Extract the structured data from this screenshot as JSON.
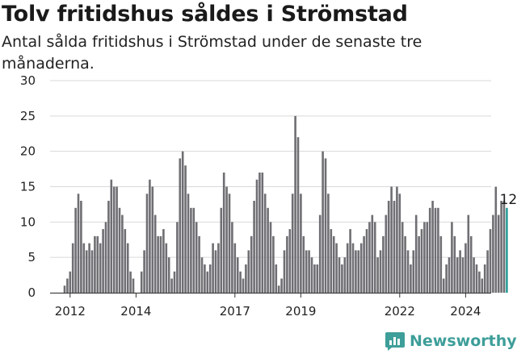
{
  "header": {
    "title": "Tolv fritidshus såldes i Strömstad",
    "subtitle": "Antal sålda fritidshus i Strömstad under de senaste tre månaderna."
  },
  "brand": {
    "name": "Newsworthy",
    "color": "#3e9e99"
  },
  "colors": {
    "bar": "#6f6e73",
    "highlight": "#2a9d98",
    "grid": "#d9d9d9"
  },
  "chart_data": {
    "type": "bar",
    "title": "Tolv fritidshus såldes i Strömstad",
    "subtitle": "Antal sålda fritidshus i Strömstad under de senaste tre månaderna.",
    "x_unit": "months",
    "x_start": "2011-11",
    "ylim": [
      0,
      30
    ],
    "yticks": [
      0,
      5,
      10,
      15,
      20,
      25,
      30
    ],
    "xticks": [
      {
        "label": "2012",
        "index": 2
      },
      {
        "label": "2014",
        "index": 26
      },
      {
        "label": "2017",
        "index": 62
      },
      {
        "label": "2019",
        "index": 86
      },
      {
        "label": "2022",
        "index": 122
      },
      {
        "label": "2024",
        "index": 146
      }
    ],
    "grid": true,
    "values": [
      1,
      2,
      3,
      7,
      12,
      14,
      13,
      7,
      6,
      7,
      6,
      8,
      8,
      7,
      9,
      10,
      13,
      16,
      15,
      15,
      12,
      11,
      9,
      7,
      3,
      2,
      0,
      0,
      3,
      6,
      14,
      16,
      15,
      11,
      8,
      8,
      9,
      7,
      5,
      2,
      3,
      10,
      19,
      20,
      18,
      14,
      12,
      12,
      10,
      8,
      5,
      4,
      3,
      4,
      7,
      6,
      7,
      12,
      17,
      15,
      14,
      10,
      7,
      5,
      3,
      2,
      4,
      6,
      8,
      13,
      16,
      17,
      17,
      14,
      12,
      10,
      8,
      4,
      1,
      2,
      6,
      8,
      9,
      14,
      25,
      22,
      14,
      8,
      6,
      6,
      5,
      4,
      4,
      11,
      20,
      19,
      14,
      9,
      8,
      7,
      5,
      4,
      5,
      7,
      9,
      7,
      6,
      6,
      7,
      8,
      9,
      10,
      11,
      10,
      5,
      6,
      8,
      11,
      13,
      15,
      13,
      15,
      14,
      10,
      8,
      6,
      4,
      6,
      11,
      8,
      9,
      10,
      10,
      12,
      13,
      12,
      12,
      8,
      2,
      4,
      5,
      10,
      8,
      5,
      6,
      5,
      7,
      11,
      8,
      5,
      4,
      3,
      2,
      4,
      6,
      9,
      11,
      15,
      11,
      13,
      13,
      12
    ],
    "highlight_last": true,
    "last_value_label": "12"
  }
}
